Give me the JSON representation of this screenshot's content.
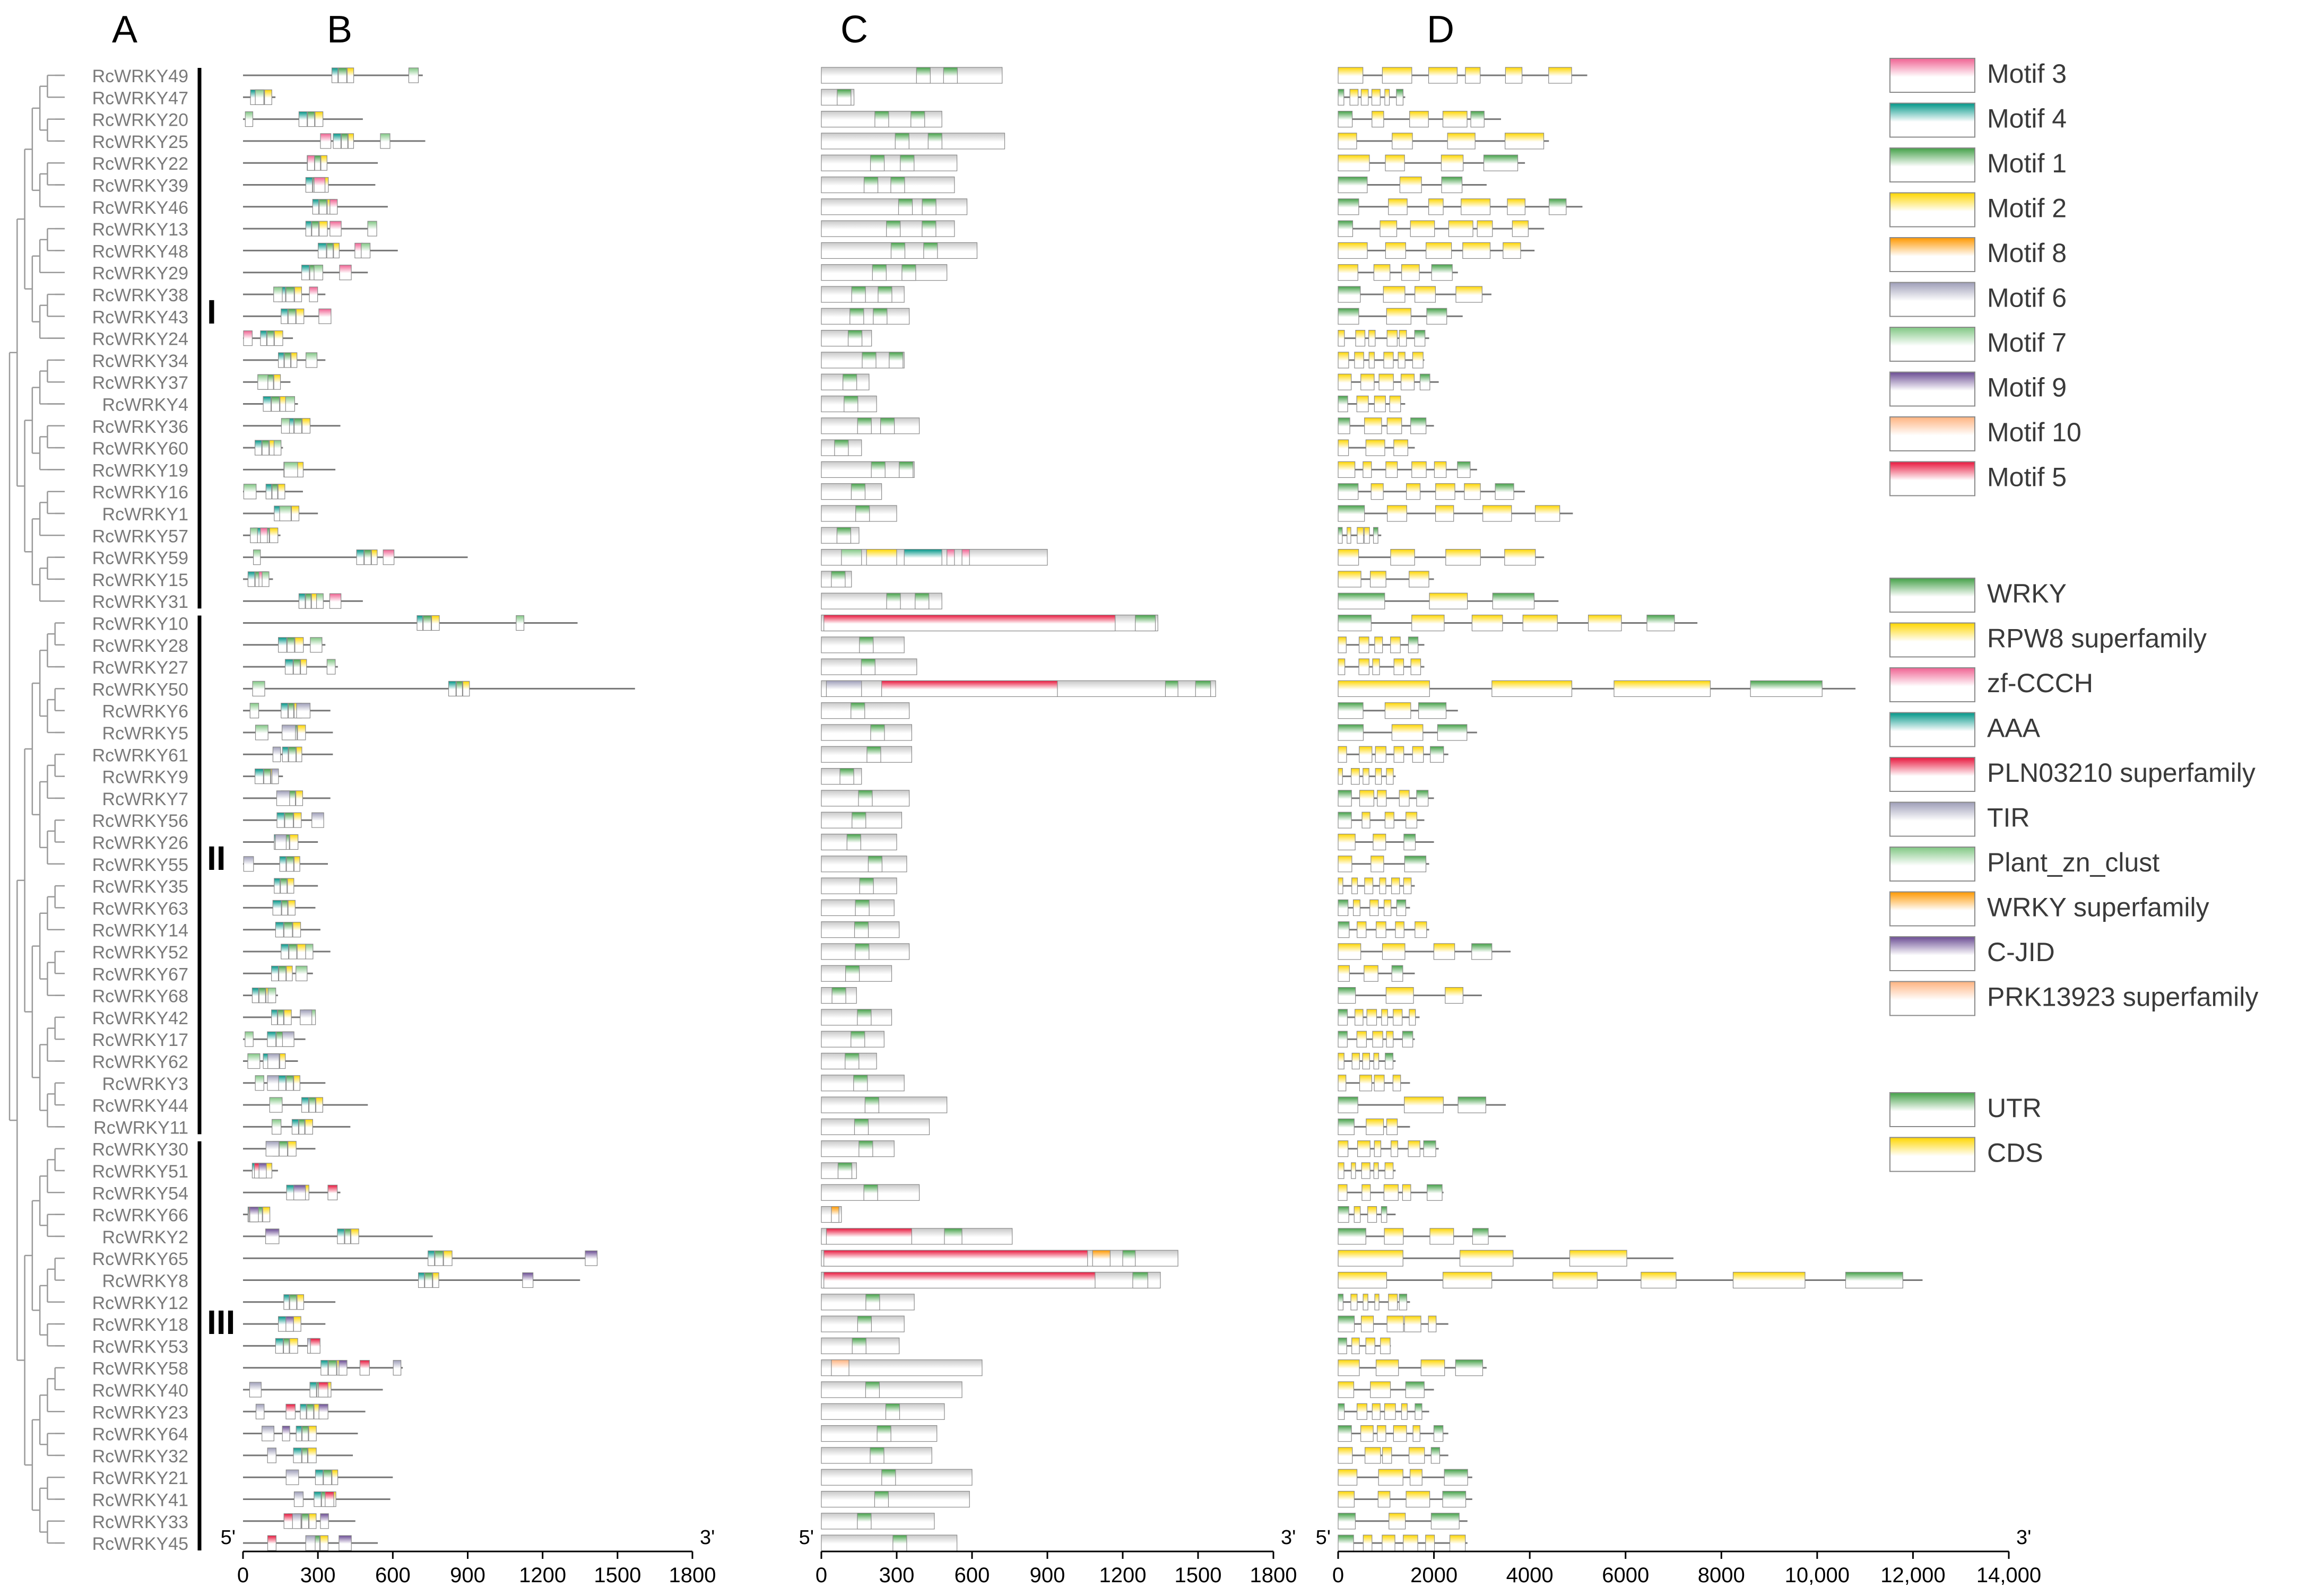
{
  "panels": {
    "A": "A",
    "B": "B",
    "C": "C",
    "D": "D"
  },
  "genes": [
    "RcWRKY49",
    "RcWRKY47",
    "RcWRKY20",
    "RcWRKY25",
    "RcWRKY22",
    "RcWRKY39",
    "RcWRKY46",
    "RcWRKY13",
    "RcWRKY48",
    "RcWRKY29",
    "RcWRKY38",
    "RcWRKY43",
    "RcWRKY24",
    "RcWRKY34",
    "RcWRKY37",
    "RcWRKY4",
    "RcWRKY36",
    "RcWRKY60",
    "RcWRKY19",
    "RcWRKY16",
    "RcWRKY1",
    "RcWRKY57",
    "RcWRKY59",
    "RcWRKY15",
    "RcWRKY31",
    "RcWRKY10",
    "RcWRKY28",
    "RcWRKY27",
    "RcWRKY50",
    "RcWRKY6",
    "RcWRKY5",
    "RcWRKY61",
    "RcWRKY9",
    "RcWRKY7",
    "RcWRKY56",
    "RcWRKY26",
    "RcWRKY55",
    "RcWRKY35",
    "RcWRKY63",
    "RcWRKY14",
    "RcWRKY52",
    "RcWRKY67",
    "RcWRKY68",
    "RcWRKY42",
    "RcWRKY17",
    "RcWRKY62",
    "RcWRKY3",
    "RcWRKY44",
    "RcWRKY11",
    "RcWRKY30",
    "RcWRKY51",
    "RcWRKY54",
    "RcWRKY66",
    "RcWRKY2",
    "RcWRKY65",
    "RcWRKY8",
    "RcWRKY12",
    "RcWRKY18",
    "RcWRKY53",
    "RcWRKY58",
    "RcWRKY40",
    "RcWRKY23",
    "RcWRKY64",
    "RcWRKY32",
    "RcWRKY21",
    "RcWRKY41",
    "RcWRKY33",
    "RcWRKY45"
  ],
  "groups": [
    {
      "label": "I",
      "first": 0,
      "last": 24
    },
    {
      "label": "II",
      "first": 25,
      "last": 48
    },
    {
      "label": "III",
      "first": 49,
      "last": 67
    }
  ],
  "protein_length_aa": [
    720,
    130,
    480,
    730,
    540,
    530,
    580,
    530,
    620,
    500,
    330,
    350,
    200,
    330,
    190,
    220,
    390,
    160,
    370,
    240,
    300,
    150,
    900,
    120,
    480,
    1340,
    330,
    380,
    1570,
    350,
    360,
    360,
    160,
    350,
    320,
    300,
    340,
    300,
    290,
    310,
    350,
    280,
    140,
    280,
    250,
    220,
    330,
    500,
    430,
    290,
    140,
    390,
    80,
    760,
    1420,
    1350,
    370,
    330,
    310,
    640,
    560,
    490,
    460,
    440,
    600,
    590,
    450,
    540
  ],
  "gene_length_bp": [
    5200,
    1400,
    3400,
    4400,
    3900,
    3100,
    5100,
    4300,
    4100,
    2500,
    3200,
    2600,
    1900,
    1800,
    2100,
    1400,
    2000,
    1600,
    2900,
    3900,
    4900,
    900,
    4300,
    2000,
    4600,
    7500,
    1800,
    1800,
    10800,
    2500,
    2900,
    2300,
    1200,
    2000,
    1800,
    2000,
    1900,
    1600,
    1500,
    1900,
    3600,
    1600,
    3000,
    1700,
    1600,
    1200,
    1500,
    3500,
    1500,
    2100,
    1200,
    2200,
    1200,
    3500,
    7000,
    12200,
    1500,
    2300,
    1100,
    3100,
    2000,
    1900,
    2300,
    2300,
    2800,
    2800,
    2700,
    2700
  ],
  "motif_legend": [
    {
      "name": "Motif 3",
      "color": "#f06292"
    },
    {
      "name": "Motif 4",
      "color": "#009688"
    },
    {
      "name": "Motif 1",
      "color": "#43a047"
    },
    {
      "name": "Motif 2",
      "color": "#ffd600"
    },
    {
      "name": "Motif 8",
      "color": "#ff9800"
    },
    {
      "name": "Motif 6",
      "color": "#9e9eb8"
    },
    {
      "name": "Motif 7",
      "color": "#81c784"
    },
    {
      "name": "Motif 9",
      "color": "#6a4c93"
    },
    {
      "name": "Motif 10",
      "color": "#ffb380"
    },
    {
      "name": "Motif 5",
      "color": "#e8163c"
    }
  ],
  "domain_legend": [
    {
      "name": "WRKY",
      "color": "#43a047"
    },
    {
      "name": "RPW8 superfamily",
      "color": "#ffd600"
    },
    {
      "name": "zf-CCCH",
      "color": "#f06292"
    },
    {
      "name": "AAA",
      "color": "#009688"
    },
    {
      "name": "PLN03210 superfamily",
      "color": "#e8163c"
    },
    {
      "name": "TIR",
      "color": "#9e9eb8"
    },
    {
      "name": "Plant_zn_clust",
      "color": "#81c784"
    },
    {
      "name": "WRKY superfamily",
      "color": "#ff9800"
    },
    {
      "name": "C-JID",
      "color": "#6a4c93"
    },
    {
      "name": "PRK13923 superfamily",
      "color": "#ffb380"
    }
  ],
  "structure_legend": [
    {
      "name": "UTR",
      "color": "#43a047"
    },
    {
      "name": "CDS",
      "color": "#ffd600"
    }
  ],
  "axes": {
    "B": {
      "ticks": [
        "0",
        "300",
        "600",
        "900",
        "1200",
        "1500",
        "1800"
      ],
      "left_end": "5'",
      "right_end": "3'",
      "max": 1800
    },
    "C": {
      "ticks": [
        "0",
        "300",
        "600",
        "900",
        "1200",
        "1500",
        "1800"
      ],
      "left_end": "5'",
      "right_end": "3'",
      "max": 1800
    },
    "D": {
      "ticks": [
        "0",
        "2000",
        "4000",
        "6000",
        "8000",
        "10,000",
        "12,000",
        "14,000"
      ],
      "left_end": "5'",
      "right_end": "3'",
      "max": 14000
    }
  }
}
